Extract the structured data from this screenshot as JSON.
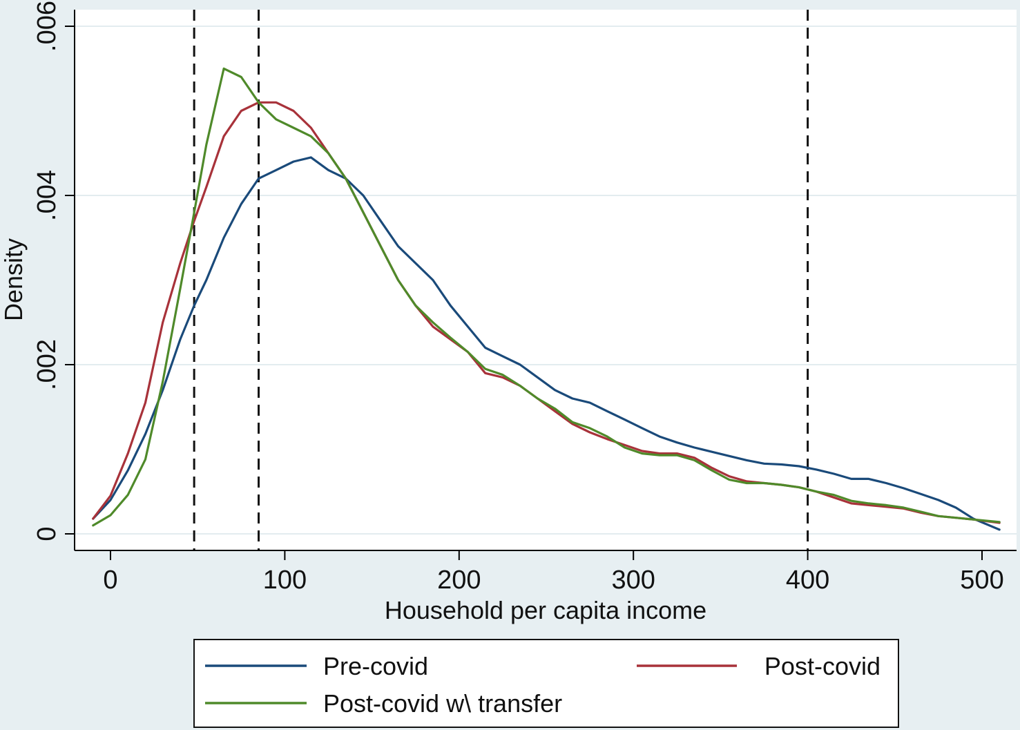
{
  "chart_data": {
    "type": "line",
    "xlabel": "Household per capita  income",
    "ylabel": "Density",
    "xlim": [
      -10,
      510
    ],
    "ylim": [
      -0.0002,
      0.0062
    ],
    "x_ticks": [
      {
        "value": 0,
        "label": "0"
      },
      {
        "value": 100,
        "label": "100"
      },
      {
        "value": 200,
        "label": "200"
      },
      {
        "value": 300,
        "label": "300"
      },
      {
        "value": 400,
        "label": "400"
      },
      {
        "value": 500,
        "label": "500"
      }
    ],
    "y_ticks": [
      {
        "value": 0,
        "label": "0"
      },
      {
        "value": 0.002,
        "label": ".002"
      },
      {
        "value": 0.004,
        "label": ".004"
      },
      {
        "value": 0.006,
        "label": ".006"
      }
    ],
    "grid": true,
    "reference_lines_x": [
      48,
      85,
      400
    ],
    "legend": {
      "placement": "bottom"
    },
    "x": [
      -10,
      0,
      10,
      20,
      30,
      40,
      48,
      55,
      65,
      75,
      85,
      95,
      105,
      115,
      125,
      135,
      145,
      155,
      165,
      175,
      185,
      195,
      205,
      215,
      225,
      235,
      245,
      255,
      265,
      275,
      285,
      295,
      305,
      315,
      325,
      335,
      345,
      355,
      365,
      375,
      385,
      395,
      405,
      415,
      425,
      435,
      445,
      455,
      465,
      475,
      485,
      495,
      510
    ],
    "series": [
      {
        "name": "Pre-covid",
        "color": "#1a4a7a",
        "values": [
          0.00018,
          0.0004,
          0.00075,
          0.00118,
          0.0017,
          0.0023,
          0.0027,
          0.003,
          0.0035,
          0.0039,
          0.0042,
          0.0043,
          0.0044,
          0.00445,
          0.0043,
          0.0042,
          0.004,
          0.0037,
          0.0034,
          0.0032,
          0.003,
          0.0027,
          0.00245,
          0.0022,
          0.0021,
          0.002,
          0.00185,
          0.0017,
          0.0016,
          0.00155,
          0.00145,
          0.00135,
          0.00125,
          0.00115,
          0.00108,
          0.00102,
          0.00097,
          0.00092,
          0.00087,
          0.00083,
          0.00082,
          0.0008,
          0.00076,
          0.00071,
          0.00065,
          0.00065,
          0.0006,
          0.00054,
          0.00047,
          0.0004,
          0.00031,
          0.00018,
          5e-05
        ]
      },
      {
        "name": "Post-covid",
        "color": "#a8323a",
        "values": [
          0.00018,
          0.00045,
          0.00095,
          0.00155,
          0.0025,
          0.0032,
          0.0037,
          0.0041,
          0.0047,
          0.005,
          0.0051,
          0.0051,
          0.005,
          0.0048,
          0.0045,
          0.0042,
          0.0038,
          0.0034,
          0.003,
          0.0027,
          0.00245,
          0.0023,
          0.00215,
          0.0019,
          0.00185,
          0.00175,
          0.0016,
          0.00145,
          0.0013,
          0.0012,
          0.00112,
          0.00105,
          0.00098,
          0.00095,
          0.00095,
          0.0009,
          0.00078,
          0.00068,
          0.00062,
          0.0006,
          0.00058,
          0.00055,
          0.0005,
          0.00043,
          0.00036,
          0.00034,
          0.00032,
          0.0003,
          0.00025,
          0.00021,
          0.00019,
          0.00017,
          0.00013
        ]
      },
      {
        "name": "Post-covid w\\ transfer",
        "color": "#4f8a2a",
        "values": [
          0.0001,
          0.00022,
          0.00046,
          0.00088,
          0.0018,
          0.0029,
          0.0038,
          0.0046,
          0.0055,
          0.0054,
          0.0051,
          0.0049,
          0.0048,
          0.0047,
          0.0045,
          0.0042,
          0.0038,
          0.0034,
          0.003,
          0.0027,
          0.0025,
          0.00232,
          0.00215,
          0.00195,
          0.00188,
          0.00175,
          0.0016,
          0.00148,
          0.00132,
          0.00125,
          0.00115,
          0.00102,
          0.00095,
          0.00093,
          0.00093,
          0.00087,
          0.00075,
          0.00064,
          0.0006,
          0.0006,
          0.00058,
          0.00055,
          0.0005,
          0.00046,
          0.00039,
          0.00036,
          0.00034,
          0.00031,
          0.00026,
          0.00021,
          0.00019,
          0.00017,
          0.00014
        ]
      }
    ]
  }
}
